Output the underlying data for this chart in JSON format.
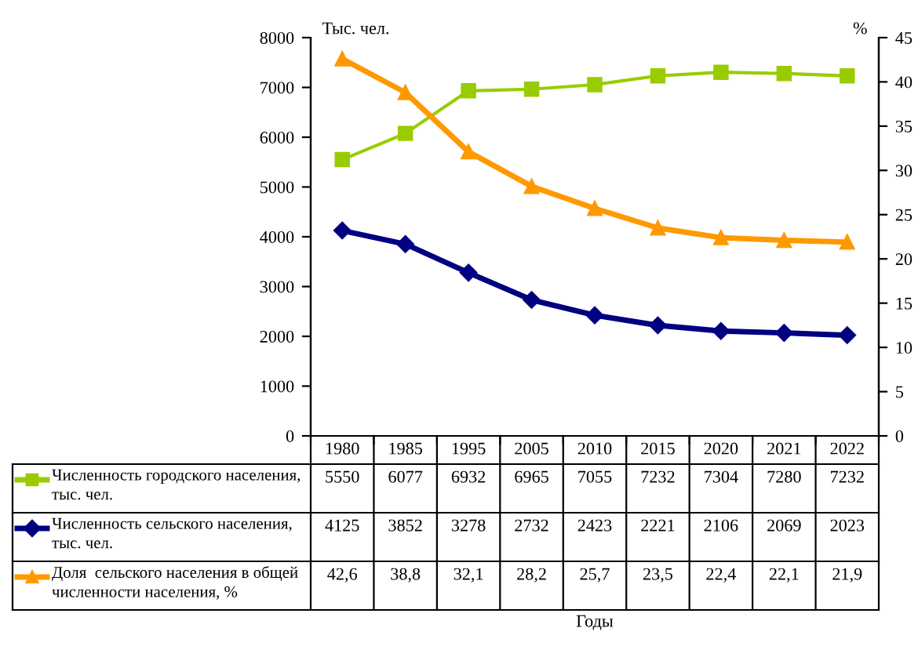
{
  "chart_data": {
    "type": "line",
    "categories": [
      "1980",
      "1985",
      "1995",
      "2005",
      "2010",
      "2015",
      "2020",
      "2021",
      "2022"
    ],
    "annotations": [
      "Годы"
    ],
    "ylabel": "Тыс. чел.",
    "y2label": "%",
    "ylim": [
      0,
      8000
    ],
    "yticks": [
      0,
      1000,
      2000,
      3000,
      4000,
      5000,
      6000,
      7000,
      8000
    ],
    "y2lim": [
      0,
      45
    ],
    "y2ticks": [
      0,
      5,
      10,
      15,
      20,
      25,
      30,
      35,
      40,
      45
    ],
    "legend": "bottom",
    "grid": false,
    "series": [
      {
        "name": "Численность городского населения,\nтыс. чел.",
        "color": "#99cc00",
        "marker": "square",
        "values": [
          5550,
          6077,
          6932,
          6965,
          7055,
          7232,
          7304,
          7280,
          7232
        ],
        "value_labels": [
          "5550",
          "6077",
          "6932",
          "6965",
          "7055",
          "7232",
          "7304",
          "7280",
          "7232"
        ]
      },
      {
        "name": "Численность сельского населения,\nтыс. чел.",
        "color": "#000080",
        "marker": "diamond",
        "values": [
          4125,
          3852,
          3278,
          2732,
          2423,
          2221,
          2106,
          2069,
          2023
        ],
        "value_labels": [
          "4125",
          "3852",
          "3278",
          "2732",
          "2423",
          "2221",
          "2106",
          "2069",
          "2023"
        ]
      },
      {
        "name": "Доля  сельского населения в общей\nчисленности населения, %",
        "color": "#ff9900",
        "marker": "triangle",
        "axis": "y2",
        "values": [
          42.6,
          38.8,
          32.1,
          28.2,
          25.7,
          23.5,
          22.4,
          22.1,
          21.9
        ],
        "value_labels": [
          "42,6",
          "38,8",
          "32,1",
          "28,2",
          "25,7",
          "23,5",
          "22,4",
          "22,1",
          "21,9"
        ]
      }
    ]
  }
}
